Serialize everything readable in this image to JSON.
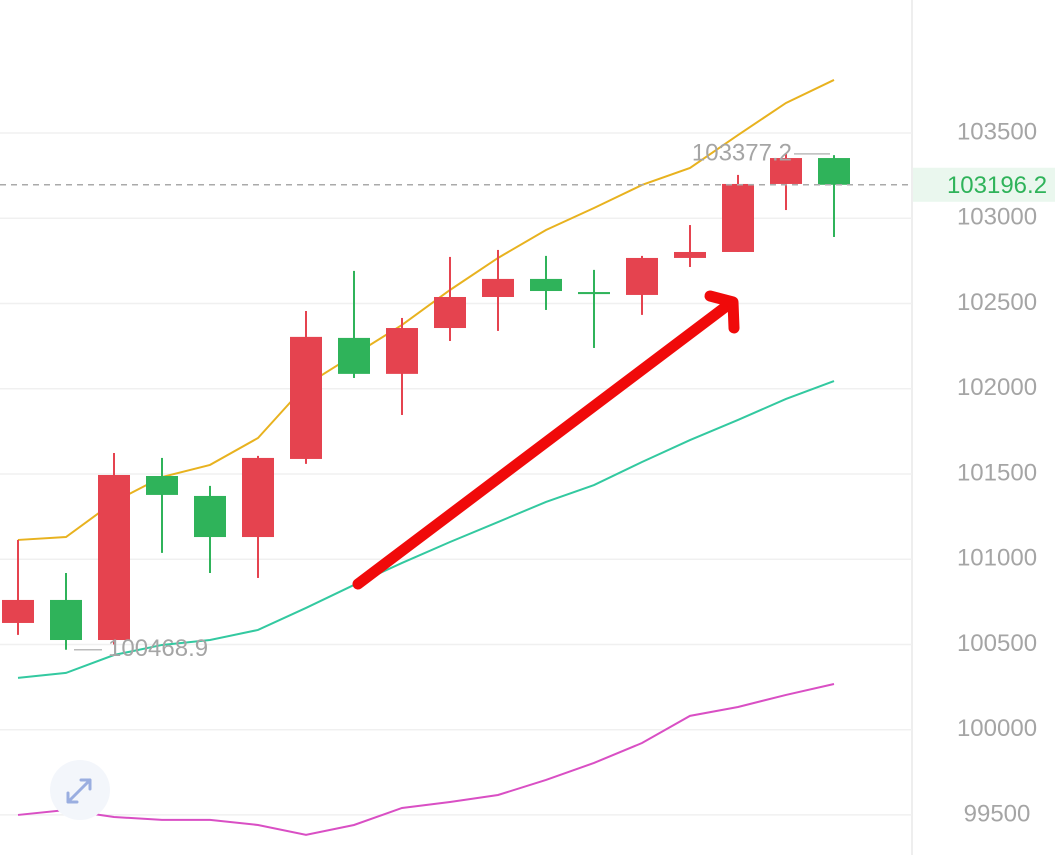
{
  "chart_data": {
    "type": "candlestick",
    "ylim": [
      99265,
      104280
    ],
    "yticks": [
      99500,
      100000,
      100500,
      101000,
      101500,
      102000,
      102500,
      103000,
      103500
    ],
    "grid": true,
    "up_color": "#e5434f",
    "down_color": "#2fb35a",
    "open": [
      100626,
      100761,
      100526,
      101488,
      101371,
      101130,
      101588,
      102298,
      102087,
      102356,
      102538,
      102644,
      102567,
      102550,
      102767,
      102802,
      103201,
      103353
    ],
    "high": [
      101113,
      100919,
      101623,
      101594,
      101430,
      101606,
      102456,
      102691,
      102415,
      102773,
      102814,
      102779,
      102697,
      102779,
      102960,
      103254,
      103377.2,
      103370
    ],
    "low": [
      100556,
      100468.9,
      100500,
      101037,
      100919,
      100890,
      101559,
      102063,
      101846,
      102280,
      102339,
      102462,
      102239,
      102433,
      102714,
      102802,
      103048,
      102890
    ],
    "close": [
      100761,
      100526,
      101494,
      101377,
      101130,
      101594,
      102304,
      102087,
      102356,
      102538,
      102644,
      102573,
      102555,
      102767,
      102802,
      103201,
      103353,
      103196.2
    ],
    "lines": [
      {
        "color": "#e8b21f",
        "values": [
          101113,
          101130,
          101336,
          101482,
          101553,
          101711,
          102022,
          102198,
          102374,
          102579,
          102767,
          102931,
          103060,
          103195,
          103295,
          103488,
          103676,
          103811
        ]
      },
      {
        "color": "#33c9a0",
        "values": [
          100304,
          100333,
          100438,
          100497,
          100526,
          100585,
          100714,
          100849,
          100978,
          101101,
          101218,
          101336,
          101435,
          101570,
          101699,
          101817,
          101940,
          102045
        ]
      },
      {
        "color": "#d94fc4",
        "values": [
          99500,
          99529,
          99488,
          99471,
          99471,
          99441,
          99383,
          99441,
          99541,
          99576,
          99617,
          99705,
          99805,
          99922,
          100081,
          100133,
          100204,
          100268
        ]
      }
    ],
    "max_label": 103377.2,
    "min_label": 100468.9,
    "last_price": 103196.2
  }
}
